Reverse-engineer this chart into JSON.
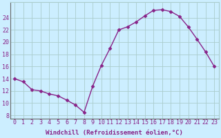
{
  "x": [
    0,
    1,
    2,
    3,
    4,
    5,
    6,
    7,
    8,
    9,
    10,
    11,
    12,
    13,
    14,
    15,
    16,
    17,
    18,
    19,
    20,
    21,
    22,
    23
  ],
  "y": [
    14.0,
    13.5,
    12.2,
    12.0,
    11.5,
    11.2,
    10.5,
    9.7,
    8.5,
    12.8,
    16.2,
    19.0,
    22.0,
    22.5,
    23.3,
    24.3,
    25.2,
    25.3,
    25.0,
    24.2,
    22.5,
    20.5,
    18.4,
    16.0
  ],
  "line_color": "#882288",
  "marker": "D",
  "marker_size": 2.5,
  "linewidth": 1.0,
  "bg_color": "#cceeff",
  "grid_color": "#aacccc",
  "tick_color": "#882288",
  "label_color": "#882288",
  "xlabel": "Windchill (Refroidissement éolien,°C)",
  "xlim": [
    -0.5,
    23.5
  ],
  "ylim": [
    7.5,
    26.5
  ],
  "yticks": [
    8,
    10,
    12,
    14,
    16,
    18,
    20,
    22,
    24
  ],
  "xticks": [
    0,
    1,
    2,
    3,
    4,
    5,
    6,
    7,
    8,
    9,
    10,
    11,
    12,
    13,
    14,
    15,
    16,
    17,
    18,
    19,
    20,
    21,
    22,
    23
  ],
  "xlabel_fontsize": 6.5,
  "tick_fontsize": 6,
  "font_family": "monospace"
}
